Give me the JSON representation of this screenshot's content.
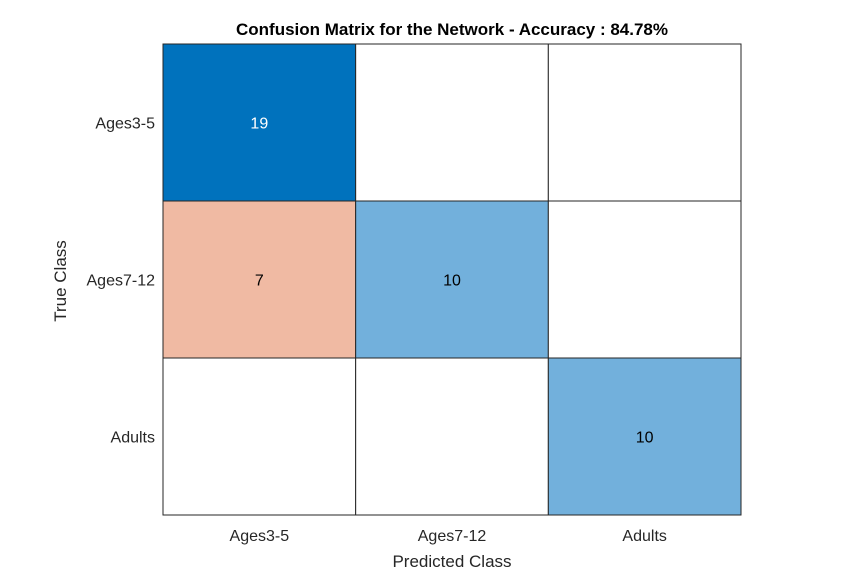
{
  "chart_data": {
    "type": "heatmap",
    "title": "Confusion Matrix for the Network - Accuracy : 84.78%",
    "xlabel": "Predicted Class",
    "ylabel": "True Class",
    "x_categories": [
      "Ages3-5",
      "Ages7-12",
      "Adults"
    ],
    "y_categories": [
      "Ages3-5",
      "Ages7-12",
      "Adults"
    ],
    "matrix": [
      [
        19,
        null,
        null
      ],
      [
        7,
        10,
        null
      ],
      [
        null,
        null,
        10
      ]
    ],
    "colors": {
      "correct_strong": "#0072bd",
      "correct_light": "#72b0dc",
      "incorrect": "#f0baa3",
      "empty": "#ffffff",
      "grid_line": "#262626",
      "text_on_dark": "#ffffff",
      "text_on_light": "#000000"
    }
  }
}
